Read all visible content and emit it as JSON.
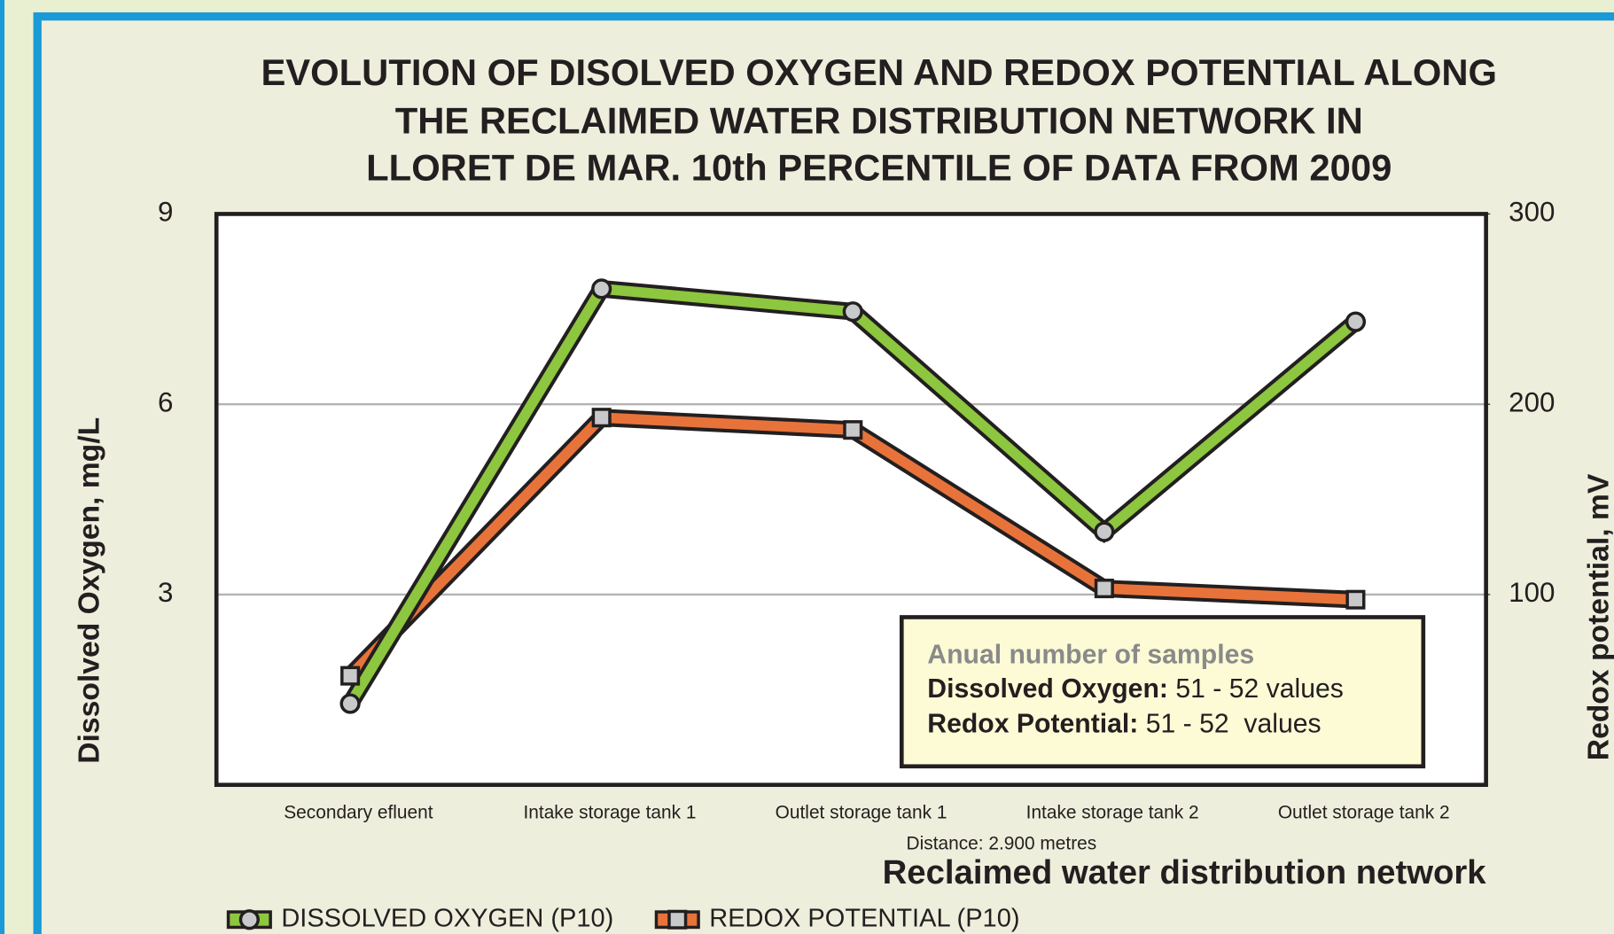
{
  "chart_data": {
    "type": "line",
    "title": [
      "EVOLUTION OF DISOLVED OXYGEN AND REDOX POTENTIAL ALONG",
      "THE RECLAIMED WATER DISTRIBUTION NETWORK IN",
      "LLORET DE MAR. 10th PERCENTILE OF DATA FROM 2009"
    ],
    "categories": [
      "Secondary efluent",
      "Intake storage tank 1",
      "Outlet storage tank 1",
      "Intake storage tank 2",
      "Outlet storage tank 2"
    ],
    "series": [
      {
        "name": "DISSOLVED OXYGEN (P10)",
        "color": "#8dc63f",
        "marker": "circle",
        "values": [
          1.28,
          7.82,
          7.46,
          3.99,
          7.3
        ]
      },
      {
        "name": "REDOX POTENTIAL (P10)",
        "color": "#e8733a",
        "marker": "square",
        "axis": "y2",
        "values": [
          57.3,
          193,
          186.5,
          103.2,
          97.3
        ]
      }
    ],
    "ylim": [
      0,
      9
    ],
    "yticks": [
      3,
      6,
      9
    ],
    "y2lim": [
      0,
      300
    ],
    "y2ticks": [
      100,
      200,
      300
    ],
    "ylabel": "Dissolved Oxygen, mg/L",
    "y2label": "Redox potential, mV",
    "xlabel": "Reclaimed water distribution network",
    "xnote": "Distance: 2.900 metres",
    "grid": true,
    "legend": "bottom",
    "annotation": {
      "heading": "Anual number of samples",
      "lines": [
        {
          "label": "Dissolved Oxygen:",
          "text": " 51 - 52 values"
        },
        {
          "label": "Redox Potential:",
          "text": " 51 - 52  values"
        }
      ]
    }
  }
}
